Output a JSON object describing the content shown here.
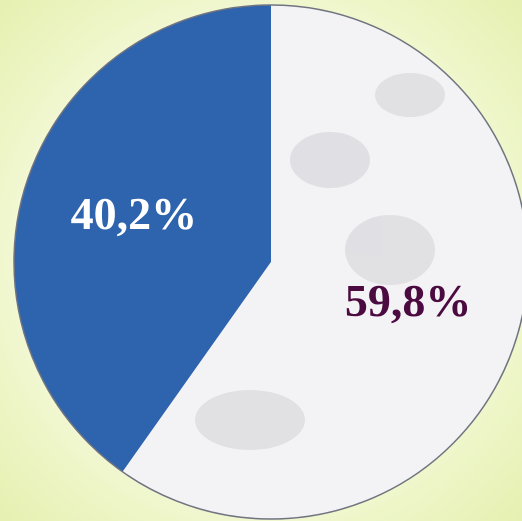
{
  "chart_data": {
    "type": "pie",
    "values": [
      40.2,
      59.8
    ],
    "value_labels": [
      "40,2%",
      "59,8%"
    ],
    "colors": [
      "#2e63ad",
      "#f3f2f5"
    ],
    "label_colors": [
      "#ffffff",
      "#4b0a40"
    ]
  }
}
